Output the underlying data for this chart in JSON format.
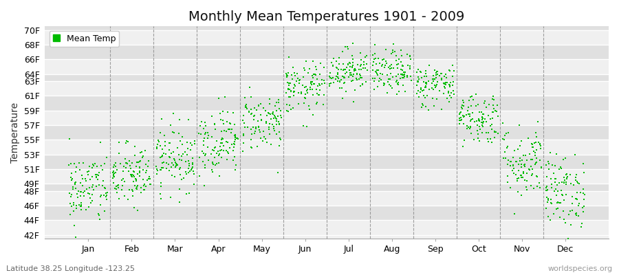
{
  "title": "Monthly Mean Temperatures 1901 - 2009",
  "ylabel": "Temperature",
  "xlabel_labels": [
    "Jan",
    "Feb",
    "Mar",
    "Apr",
    "May",
    "Jun",
    "Jul",
    "Aug",
    "Sep",
    "Oct",
    "Nov",
    "Dec"
  ],
  "ytick_labels": [
    "42F",
    "44F",
    "46F",
    "48F",
    "49F",
    "51F",
    "53F",
    "55F",
    "57F",
    "59F",
    "61F",
    "63F",
    "64F",
    "66F",
    "68F",
    "70F"
  ],
  "ytick_values": [
    42,
    44,
    46,
    48,
    49,
    51,
    53,
    55,
    57,
    59,
    61,
    63,
    64,
    66,
    68,
    70
  ],
  "ylim": [
    41.5,
    70.5
  ],
  "dot_color": "#00BB00",
  "dot_size": 3,
  "background_color": "#FFFFFF",
  "plot_bg_color": "#F0F0F0",
  "band_color_light": "#F0F0F0",
  "band_color_dark": "#E0E0E0",
  "grid_line_color": "#FFFFFF",
  "vline_color": "#888888",
  "legend_label": "Mean Temp",
  "subtitle": "Latitude 38.25 Longitude -123.25",
  "watermark": "worldspecies.org",
  "title_fontsize": 14,
  "label_fontsize": 9,
  "n_years": 109,
  "monthly_means": [
    48.3,
    50.0,
    52.5,
    54.8,
    57.5,
    62.0,
    64.5,
    64.2,
    62.5,
    58.0,
    52.0,
    48.0
  ],
  "monthly_stds": [
    2.5,
    2.2,
    2.2,
    2.3,
    2.0,
    1.8,
    1.5,
    1.5,
    1.5,
    1.8,
    2.5,
    2.5
  ]
}
